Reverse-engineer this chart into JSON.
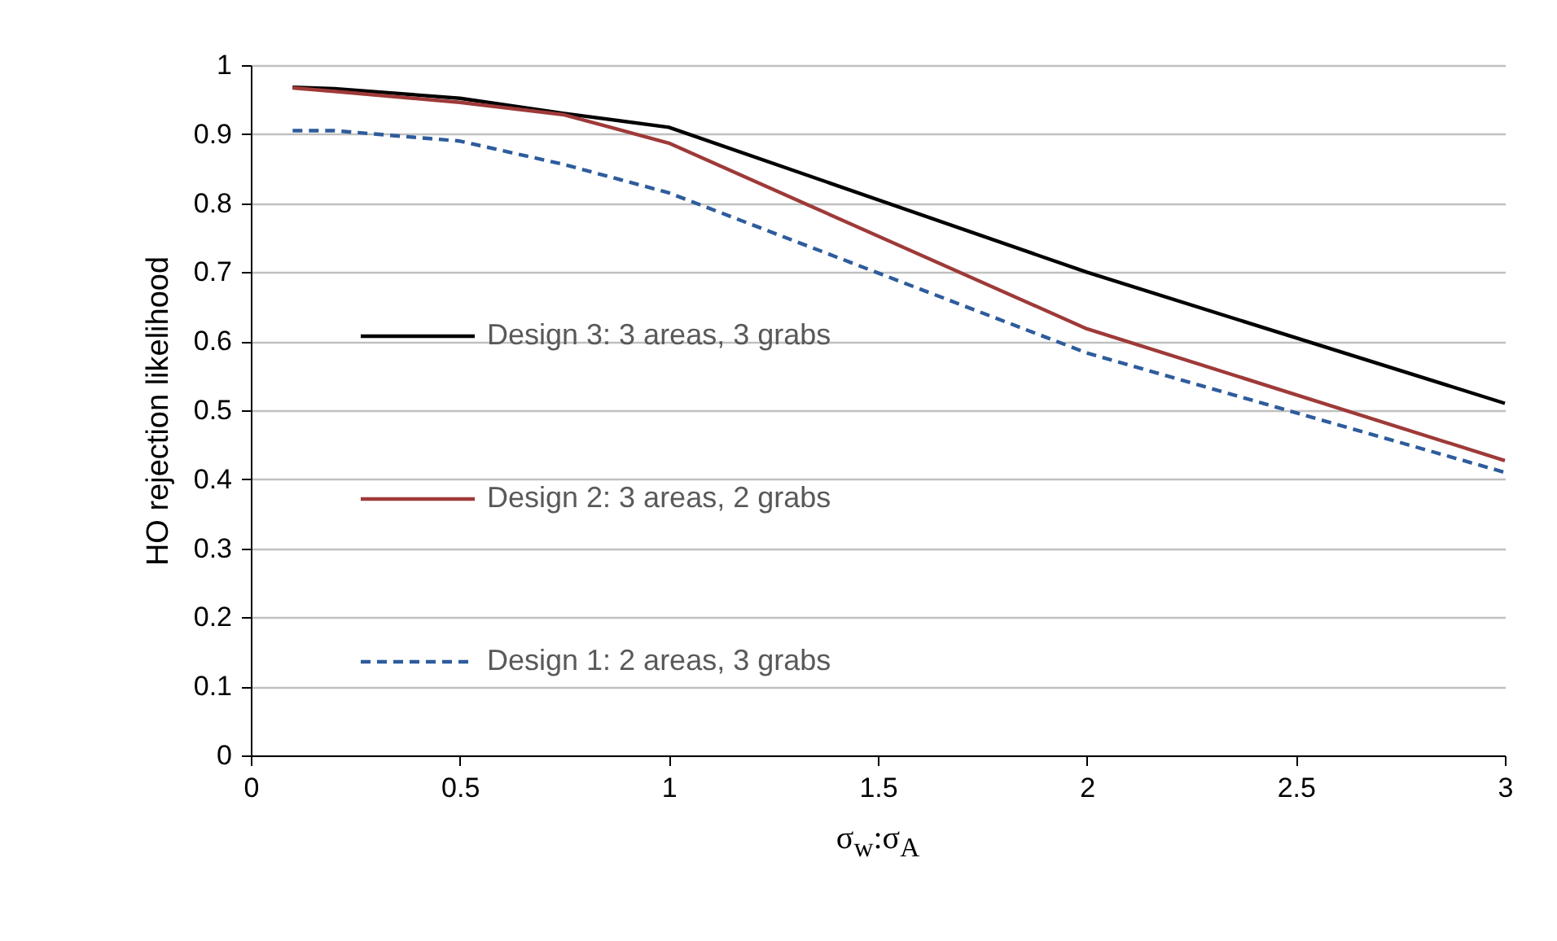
{
  "chart_data": {
    "type": "line",
    "xlabel": "σ$_{w}$:σ$_{A}$",
    "ylabel": "HO rejection likelihood",
    "x": [
      0.1,
      0.2,
      0.5,
      0.75,
      1,
      2,
      3
    ],
    "series": [
      {
        "name": "Design 3: 3 areas, 3 grabs",
        "color": "#000000",
        "line_style": "solid",
        "values": [
          0.968,
          0.966,
          0.952,
          0.93,
          0.91,
          0.7,
          0.51
        ]
      },
      {
        "name": "Design 2: 3 areas, 2 grabs",
        "color": "#9e3a38",
        "line_style": "solid",
        "values": [
          0.967,
          0.962,
          0.946,
          0.928,
          0.887,
          0.618,
          0.427
        ]
      },
      {
        "name": "Design 1: 2 areas, 3 grabs",
        "color": "#2e5c9c",
        "line_style": "dashed",
        "values": [
          0.905,
          0.905,
          0.89,
          0.856,
          0.815,
          0.583,
          0.41
        ]
      }
    ],
    "xlim": [
      0,
      3
    ],
    "xticks": [
      0,
      0.5,
      1,
      1.5,
      2,
      2.5,
      3
    ],
    "ylim": [
      0,
      1
    ],
    "yticks": [
      0,
      0.1,
      0.2,
      0.3,
      0.4,
      0.5,
      0.6,
      0.7,
      0.8,
      0.9,
      1
    ],
    "grid": "y",
    "legend": "left",
    "marker": "none"
  }
}
